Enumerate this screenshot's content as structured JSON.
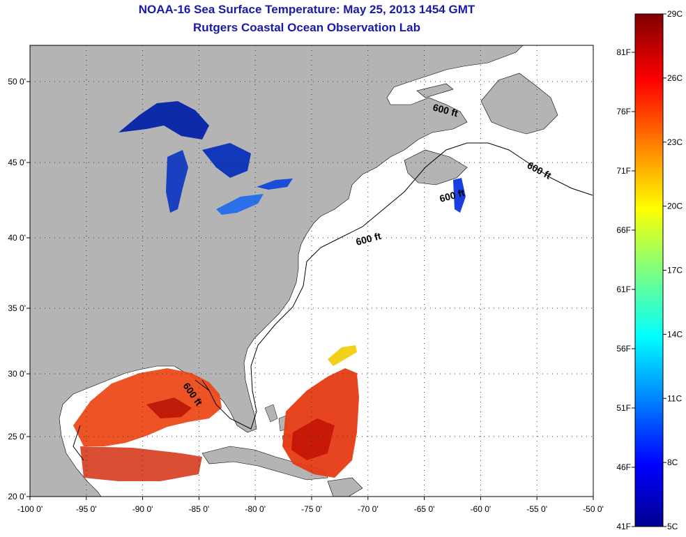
{
  "header": {
    "title": "NOAA-16 Sea Surface Temperature:  May 25, 2013 1454 GMT",
    "subtitle": "Rutgers Coastal Ocean Observation Lab"
  },
  "map": {
    "lon_range": [
      -100,
      -50
    ],
    "lat_range": [
      20,
      52
    ],
    "lon_ticks": [
      "-100 0'",
      "-95 0'",
      "-90 0'",
      "-85 0'",
      "-80 0'",
      "-75 0'",
      "-70 0'",
      "-65 0'",
      "-60 0'",
      "-55 0'",
      "-50 0'"
    ],
    "lat_ticks": [
      "50 0'",
      "45 0'",
      "40 0'",
      "35 0'",
      "30 0'",
      "25 0'",
      "20 0'"
    ],
    "contour_label": "600 ft",
    "land_color": "#b4b4b4",
    "ocean_color": "#ffffff",
    "grid": "dotted"
  },
  "colorbar": {
    "celsius_labels": [
      "29C",
      "26C",
      "23C",
      "20C",
      "17C",
      "14C",
      "11C",
      "8C",
      "5C"
    ],
    "fahrenheit_labels": [
      "81F",
      "76F",
      "71F",
      "66F",
      "61F",
      "56F",
      "51F",
      "46F",
      "41F"
    ],
    "range_c": [
      5,
      29
    ],
    "colormap": "jet"
  }
}
